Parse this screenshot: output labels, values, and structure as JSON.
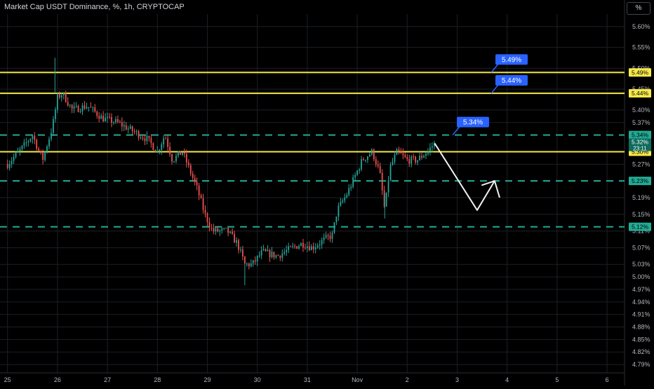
{
  "header": {
    "title": "Market Cap USDT Dominance, %, 1h, CRYPTOCAP",
    "scale_button": "%"
  },
  "chart_data": {
    "type": "candlestick",
    "title": "Market Cap USDT Dominance, %, 1h, CRYPTOCAP",
    "y_unit": "%",
    "ylim": [
      4.77,
      5.63
    ],
    "y_ticks": [
      "5.60%",
      "5.55%",
      "5.50%",
      "5.45%",
      "5.40%",
      "5.37%",
      "5.27%",
      "5.19%",
      "5.15%",
      "5.11%",
      "5.07%",
      "5.03%",
      "5.00%",
      "4.97%",
      "4.94%",
      "4.91%",
      "4.88%",
      "4.85%",
      "4.82%",
      "4.79%"
    ],
    "y_tick_values": [
      5.6,
      5.55,
      5.5,
      5.45,
      5.4,
      5.37,
      5.27,
      5.19,
      5.15,
      5.11,
      5.07,
      5.03,
      5.0,
      4.97,
      4.94,
      4.91,
      4.88,
      4.85,
      4.82,
      4.79
    ],
    "x_ticks": [
      "25",
      "26",
      "27",
      "28",
      "29",
      "30",
      "31",
      "Nov",
      "2",
      "3",
      "4",
      "5",
      "6"
    ],
    "x_tick_days": [
      25,
      26,
      27,
      28,
      29,
      30,
      31,
      32,
      33,
      34,
      35,
      36,
      37
    ],
    "xlim": [
      24.85,
      37.35
    ],
    "price_path": [
      [
        25.0,
        5.27
      ],
      [
        25.3,
        5.31
      ],
      [
        25.5,
        5.34
      ],
      [
        25.7,
        5.28
      ],
      [
        25.9,
        5.36
      ],
      [
        26.0,
        5.43
      ],
      [
        26.1,
        5.44
      ],
      [
        26.3,
        5.4
      ],
      [
        26.6,
        5.41
      ],
      [
        26.9,
        5.38
      ],
      [
        27.2,
        5.37
      ],
      [
        27.5,
        5.35
      ],
      [
        27.8,
        5.33
      ],
      [
        28.0,
        5.3
      ],
      [
        28.15,
        5.34
      ],
      [
        28.3,
        5.28
      ],
      [
        28.5,
        5.3
      ],
      [
        28.6,
        5.27
      ],
      [
        28.8,
        5.21
      ],
      [
        28.95,
        5.15
      ],
      [
        29.1,
        5.11
      ],
      [
        29.4,
        5.11
      ],
      [
        29.6,
        5.08
      ],
      [
        29.75,
        5.03
      ],
      [
        29.9,
        5.03
      ],
      [
        30.1,
        5.06
      ],
      [
        30.4,
        5.05
      ],
      [
        30.7,
        5.07
      ],
      [
        30.9,
        5.08
      ],
      [
        31.1,
        5.07
      ],
      [
        31.35,
        5.09
      ],
      [
        31.5,
        5.1
      ],
      [
        31.6,
        5.16
      ],
      [
        31.8,
        5.2
      ],
      [
        31.95,
        5.24
      ],
      [
        32.1,
        5.28
      ],
      [
        32.3,
        5.3
      ],
      [
        32.45,
        5.25
      ],
      [
        32.55,
        5.16
      ],
      [
        32.65,
        5.26
      ],
      [
        32.8,
        5.3
      ],
      [
        33.0,
        5.28
      ],
      [
        33.2,
        5.28
      ],
      [
        33.4,
        5.3
      ],
      [
        33.55,
        5.32
      ]
    ],
    "spikes": [
      {
        "x": 25.95,
        "high": 5.525,
        "low": 5.44
      },
      {
        "x": 29.75,
        "high": 5.03,
        "low": 4.98
      },
      {
        "x": 32.55,
        "high": 5.2,
        "low": 5.14
      }
    ],
    "levels": [
      {
        "value": 5.49,
        "label": "5.49%",
        "style": "solid",
        "color": "#f5e94a",
        "callout": "5.49%"
      },
      {
        "value": 5.44,
        "label": "5.44%",
        "style": "solid",
        "color": "#f5e94a",
        "callout": "5.44%"
      },
      {
        "value": 5.34,
        "label": "5.34%",
        "style": "dashed",
        "color": "#22ab94",
        "callout": "5.34%"
      },
      {
        "value": 5.3,
        "label": "5.30%",
        "style": "solid",
        "color": "#f5e94a",
        "callout": ""
      },
      {
        "value": 5.23,
        "label": "5.23%",
        "style": "dashed",
        "color": "#22ab94",
        "callout": ""
      },
      {
        "value": 5.12,
        "label": "5.12%",
        "style": "dashed",
        "color": "#22ab94",
        "callout": ""
      }
    ],
    "last_price": {
      "value": 5.32,
      "label": "5.32%",
      "countdown": "23:11"
    },
    "projection": [
      [
        33.55,
        5.32
      ],
      [
        34.4,
        5.16
      ],
      [
        34.75,
        5.23
      ],
      [
        34.5,
        5.22
      ],
      [
        34.75,
        5.23
      ],
      [
        34.85,
        5.19
      ]
    ],
    "colors": {
      "up": "#26a69a",
      "down": "#ef5350",
      "grid": "#1c1f26",
      "axis_text": "#b2b5be",
      "callout": "#2962ff"
    }
  }
}
